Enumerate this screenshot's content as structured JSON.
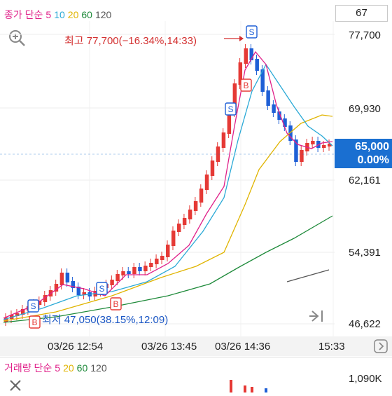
{
  "legend": {
    "label": "종가 단순",
    "ma": [
      {
        "label": "5",
        "color": "#e0218a"
      },
      {
        "label": "10",
        "color": "#2aa9d6"
      },
      {
        "label": "20",
        "color": "#e0b400"
      },
      {
        "label": "60",
        "color": "#1e8a3a"
      },
      {
        "label": "120",
        "color": "#555555"
      }
    ]
  },
  "interval": "67",
  "price_axis": [
    "77,700",
    "69,930",
    "62,161",
    "54,391",
    "46,622"
  ],
  "current_price": {
    "price": "65,000",
    "change": "0.00%"
  },
  "annotations": {
    "high": "최고 77,700(−16.34%,14:33)",
    "low": "최저 47,050(38.15%,12:09)"
  },
  "time_axis": [
    "03/26 12:54",
    "03/26 13:45",
    "03/26 14:36",
    "15:33"
  ],
  "volume": {
    "label": "거래량 단순",
    "ma": [
      {
        "label": "5",
        "color": "#e0218a"
      },
      {
        "label": "20",
        "color": "#e0b400"
      },
      {
        "label": "60",
        "color": "#1e8a3a"
      },
      {
        "label": "120",
        "color": "#555555"
      }
    ],
    "max": "1,090K"
  },
  "markers": {
    "buy": "B",
    "sell": "S"
  },
  "colors": {
    "up": "#e53935",
    "down": "#1e5fd6",
    "accent": "#1a6fd1"
  },
  "icons": [
    "zoom-in-icon",
    "jump-to-end-icon",
    "scroll-right-icon",
    "close-icon"
  ]
}
